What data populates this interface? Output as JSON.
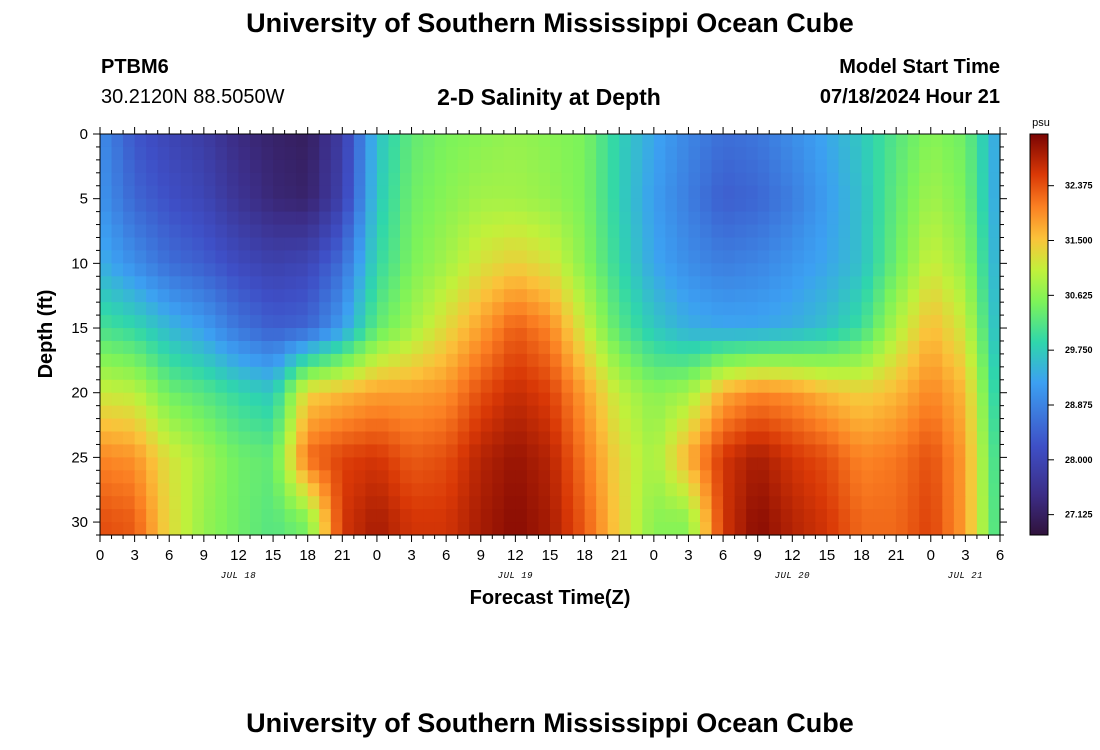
{
  "page": {
    "title_top": "University of Southern Mississippi Ocean Cube",
    "title_bottom": "University of Southern Mississippi Ocean Cube"
  },
  "header": {
    "station_id": "PTBM6",
    "station_coords": "30.2120N  88.5050W",
    "plot_title": "2-D Salinity at Depth",
    "model_label": "Model Start Time",
    "model_time": "07/18/2024 Hour 21"
  },
  "chart_data": {
    "type": "heatmap",
    "title": "2-D Salinity at Depth",
    "xlabel": "Forecast Time(Z)",
    "ylabel": "Depth (ft)",
    "x_range_hours": [
      0,
      78
    ],
    "ylim": [
      0,
      31
    ],
    "y_inverted": true,
    "x_tick_labels": [
      "0",
      "3",
      "6",
      "9",
      "12",
      "15",
      "18",
      "21",
      "0",
      "3",
      "6",
      "9",
      "12",
      "15",
      "18",
      "21",
      "0",
      "3",
      "6",
      "9",
      "12",
      "15",
      "18",
      "21",
      "0",
      "3",
      "6"
    ],
    "y_ticks": [
      0,
      5,
      10,
      15,
      20,
      25,
      30
    ],
    "day_labels": [
      {
        "label": "JUL 18",
        "hour": 12
      },
      {
        "label": "JUL 19",
        "hour": 36
      },
      {
        "label": "JUL 20",
        "hour": 60
      },
      {
        "label": "JUL 21",
        "hour": 75
      }
    ],
    "colorbar": {
      "unit": "psu",
      "min": 26.8,
      "max": 33.2,
      "tick_labels": [
        "32.375",
        "31.500",
        "30.625",
        "29.750",
        "28.875",
        "28.000",
        "27.125"
      ],
      "tick_values": [
        32.375,
        31.5,
        30.625,
        29.75,
        28.875,
        28.0,
        27.125
      ]
    },
    "grid": {
      "hours": [
        0,
        3,
        6,
        9,
        12,
        15,
        18,
        21,
        24,
        27,
        30,
        33,
        36,
        39,
        42,
        45,
        48,
        51,
        54,
        57,
        60,
        63,
        66,
        69,
        72,
        75,
        78
      ],
      "depths": [
        0,
        5,
        10,
        15,
        20,
        25,
        30
      ],
      "salinity": [
        [
          29.0,
          28.3,
          28.0,
          27.8,
          27.4,
          27.2,
          27.1,
          27.8,
          29.6,
          30.3,
          30.5,
          30.6,
          30.7,
          30.6,
          30.5,
          29.8,
          29.3,
          28.9,
          28.6,
          28.7,
          29.0,
          29.3,
          29.7,
          30.2,
          30.6,
          30.4,
          29.2
        ],
        [
          29.1,
          28.5,
          28.2,
          28.0,
          27.6,
          27.3,
          27.2,
          27.9,
          29.7,
          30.4,
          30.6,
          30.8,
          30.8,
          30.7,
          30.5,
          29.8,
          29.2,
          28.8,
          28.4,
          28.5,
          28.8,
          29.2,
          29.6,
          30.3,
          30.8,
          30.5,
          29.2
        ],
        [
          29.4,
          29.0,
          28.6,
          28.4,
          28.1,
          27.9,
          28.0,
          28.6,
          29.9,
          30.5,
          30.8,
          31.2,
          31.4,
          31.2,
          30.6,
          29.9,
          29.3,
          29.0,
          28.8,
          28.9,
          29.1,
          29.3,
          29.6,
          30.4,
          31.1,
          30.7,
          29.3
        ],
        [
          30.1,
          29.9,
          29.5,
          29.2,
          28.7,
          28.4,
          28.5,
          29.2,
          30.3,
          30.8,
          31.3,
          31.8,
          32.3,
          32.0,
          31.1,
          30.2,
          29.7,
          29.4,
          29.3,
          29.3,
          29.4,
          29.6,
          30.0,
          30.9,
          31.6,
          31.1,
          29.4
        ],
        [
          31.1,
          31.0,
          30.4,
          30.2,
          29.9,
          29.7,
          31.4,
          31.6,
          31.8,
          31.8,
          31.9,
          32.4,
          32.7,
          32.5,
          31.8,
          31.0,
          30.6,
          30.8,
          31.7,
          32.0,
          31.9,
          31.6,
          31.4,
          31.6,
          32.0,
          31.6,
          29.6
        ],
        [
          32.0,
          31.9,
          31.2,
          30.8,
          30.4,
          30.3,
          32.2,
          32.5,
          32.6,
          32.3,
          32.4,
          32.8,
          33.0,
          32.8,
          32.1,
          31.3,
          30.8,
          31.7,
          32.6,
          32.9,
          32.6,
          32.4,
          32.0,
          32.1,
          32.4,
          31.8,
          29.8
        ],
        [
          32.4,
          32.3,
          31.3,
          30.7,
          30.4,
          30.2,
          30.5,
          32.6,
          32.9,
          32.6,
          32.6,
          32.9,
          33.1,
          32.9,
          32.3,
          31.4,
          30.6,
          30.6,
          32.6,
          33.1,
          32.8,
          32.6,
          32.2,
          32.2,
          32.5,
          31.8,
          29.9
        ]
      ]
    }
  }
}
